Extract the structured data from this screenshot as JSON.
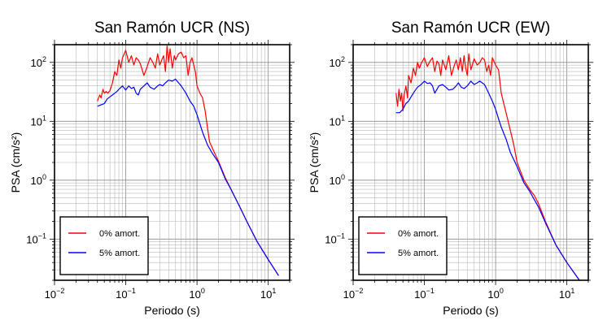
{
  "chart_data": [
    {
      "type": "line",
      "title": "San Ramón UCR (NS)",
      "xlabel": "Periodo (s)",
      "ylabel": "PSA (cm/s²)",
      "x_scale": "log",
      "y_scale": "log",
      "xlim": [
        0.01,
        20
      ],
      "ylim": [
        0.02,
        200
      ],
      "x_ticks": [
        {
          "value": 0.01,
          "base": "10",
          "exp": "−2"
        },
        {
          "value": 0.1,
          "base": "10",
          "exp": "−1"
        },
        {
          "value": 1,
          "base": "10",
          "exp": "0"
        },
        {
          "value": 10,
          "base": "10",
          "exp": "1"
        }
      ],
      "y_ticks": [
        {
          "value": 0.1,
          "base": "10",
          "exp": "−1"
        },
        {
          "value": 1,
          "base": "10",
          "exp": "0"
        },
        {
          "value": 10,
          "base": "10",
          "exp": "1"
        },
        {
          "value": 100,
          "base": "10",
          "exp": "2"
        }
      ],
      "grid": true,
      "legend_position": "bottom-left",
      "series": [
        {
          "name": "0% amort.",
          "color": "#ff0000",
          "x": [
            0.04,
            0.043,
            0.045,
            0.048,
            0.05,
            0.053,
            0.056,
            0.06,
            0.065,
            0.07,
            0.075,
            0.08,
            0.085,
            0.09,
            0.1,
            0.11,
            0.12,
            0.13,
            0.14,
            0.15,
            0.16,
            0.18,
            0.2,
            0.22,
            0.24,
            0.26,
            0.28,
            0.3,
            0.32,
            0.34,
            0.36,
            0.38,
            0.4,
            0.42,
            0.45,
            0.48,
            0.5,
            0.55,
            0.6,
            0.65,
            0.7,
            0.75,
            0.8,
            0.85,
            0.9,
            0.95,
            1.0,
            1.1,
            1.2,
            1.3,
            1.4,
            1.5,
            1.7,
            2.0,
            2.5,
            3.0,
            4.0,
            5.0,
            7.0,
            10.0,
            14.0
          ],
          "y": [
            22,
            28,
            25,
            35,
            30,
            32,
            30,
            33,
            45,
            70,
            60,
            110,
            80,
            120,
            160,
            100,
            130,
            90,
            120,
            110,
            95,
            60,
            85,
            120,
            100,
            80,
            140,
            90,
            110,
            130,
            70,
            190,
            100,
            170,
            80,
            130,
            110,
            140,
            150,
            120,
            130,
            60,
            100,
            120,
            90,
            70,
            40,
            30,
            25,
            15,
            8,
            4.5,
            3.2,
            2.1,
            1.1,
            0.7,
            0.35,
            0.2,
            0.09,
            0.045,
            0.024
          ]
        },
        {
          "name": "5% amort.",
          "color": "#0000ff",
          "x": [
            0.04,
            0.045,
            0.05,
            0.055,
            0.06,
            0.065,
            0.07,
            0.075,
            0.08,
            0.09,
            0.1,
            0.11,
            0.12,
            0.13,
            0.14,
            0.15,
            0.16,
            0.18,
            0.2,
            0.22,
            0.25,
            0.28,
            0.3,
            0.33,
            0.36,
            0.4,
            0.45,
            0.5,
            0.55,
            0.6,
            0.7,
            0.8,
            0.9,
            1.0,
            1.1,
            1.2,
            1.4,
            1.6,
            2.0,
            2.5,
            3.0,
            4.0,
            5.0,
            7.0,
            10.0,
            14.0
          ],
          "y": [
            18,
            19,
            20,
            24,
            26,
            28,
            30,
            32,
            35,
            40,
            34,
            40,
            36,
            38,
            30,
            28,
            35,
            40,
            45,
            38,
            35,
            40,
            42,
            40,
            45,
            50,
            48,
            52,
            45,
            40,
            30,
            22,
            18,
            13,
            9,
            6.5,
            4.0,
            3.0,
            2.0,
            1.05,
            0.7,
            0.35,
            0.2,
            0.09,
            0.045,
            0.024
          ]
        }
      ]
    },
    {
      "type": "line",
      "title": "San Ramón UCR (EW)",
      "xlabel": "Periodo (s)",
      "ylabel": "PSA (cm/s²)",
      "x_scale": "log",
      "y_scale": "log",
      "xlim": [
        0.01,
        20
      ],
      "ylim": [
        0.02,
        200
      ],
      "x_ticks": [
        {
          "value": 0.01,
          "base": "10",
          "exp": "−2"
        },
        {
          "value": 0.1,
          "base": "10",
          "exp": "−1"
        },
        {
          "value": 1,
          "base": "10",
          "exp": "0"
        },
        {
          "value": 10,
          "base": "10",
          "exp": "1"
        }
      ],
      "y_ticks": [
        {
          "value": 0.1,
          "base": "10",
          "exp": "−1"
        },
        {
          "value": 1,
          "base": "10",
          "exp": "0"
        },
        {
          "value": 10,
          "base": "10",
          "exp": "1"
        },
        {
          "value": 100,
          "base": "10",
          "exp": "2"
        }
      ],
      "grid": true,
      "legend_position": "bottom-left",
      "series": [
        {
          "name": "0% amort.",
          "color": "#ff0000",
          "x": [
            0.04,
            0.042,
            0.044,
            0.046,
            0.048,
            0.05,
            0.052,
            0.055,
            0.058,
            0.06,
            0.065,
            0.07,
            0.075,
            0.08,
            0.085,
            0.09,
            0.1,
            0.11,
            0.12,
            0.13,
            0.14,
            0.15,
            0.16,
            0.17,
            0.18,
            0.2,
            0.22,
            0.24,
            0.26,
            0.28,
            0.3,
            0.32,
            0.34,
            0.36,
            0.38,
            0.4,
            0.42,
            0.45,
            0.5,
            0.55,
            0.6,
            0.65,
            0.7,
            0.75,
            0.8,
            0.85,
            0.9,
            1.0,
            1.1,
            1.2,
            1.5,
            1.8,
            2.0,
            2.5,
            3.0,
            3.5,
            4.0,
            5.0,
            7.0,
            10.0,
            15.0
          ],
          "y": [
            30,
            18,
            35,
            22,
            30,
            15,
            28,
            40,
            25,
            60,
            45,
            80,
            60,
            100,
            80,
            95,
            120,
            85,
            105,
            120,
            70,
            105,
            95,
            60,
            110,
            75,
            130,
            60,
            85,
            110,
            75,
            120,
            70,
            130,
            80,
            60,
            140,
            75,
            115,
            90,
            100,
            120,
            110,
            70,
            90,
            60,
            120,
            90,
            75,
            30,
            10,
            4,
            2.0,
            1.0,
            0.7,
            0.55,
            0.4,
            0.2,
            0.08,
            0.04,
            0.02
          ]
        },
        {
          "name": "5% amort.",
          "color": "#0000ff",
          "x": [
            0.04,
            0.045,
            0.05,
            0.055,
            0.06,
            0.065,
            0.07,
            0.075,
            0.08,
            0.09,
            0.1,
            0.11,
            0.12,
            0.13,
            0.14,
            0.15,
            0.16,
            0.18,
            0.2,
            0.22,
            0.25,
            0.28,
            0.3,
            0.33,
            0.36,
            0.4,
            0.45,
            0.5,
            0.55,
            0.6,
            0.7,
            0.8,
            0.9,
            1.0,
            1.1,
            1.2,
            1.4,
            1.6,
            2.0,
            2.5,
            3.0,
            4.0,
            5.0,
            7.0,
            10.0,
            15.0
          ],
          "y": [
            14,
            14,
            16,
            20,
            22,
            26,
            30,
            34,
            38,
            42,
            48,
            44,
            45,
            40,
            30,
            35,
            40,
            42,
            38,
            34,
            35,
            40,
            45,
            38,
            36,
            40,
            48,
            42,
            45,
            48,
            42,
            30,
            22,
            16,
            11,
            8,
            5,
            3,
            1.7,
            0.9,
            0.65,
            0.35,
            0.19,
            0.08,
            0.04,
            0.02
          ]
        }
      ]
    }
  ]
}
